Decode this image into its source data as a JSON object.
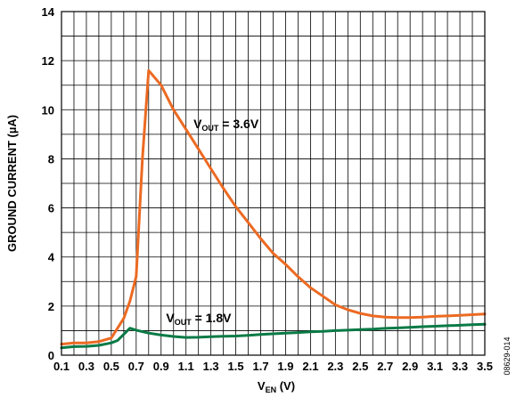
{
  "chart_data": {
    "type": "line",
    "xlabel": {
      "main": "V",
      "sub": "EN",
      "unit": " (V)"
    },
    "ylabel": "GROUND CURRENT (µA)",
    "xlim": [
      0.1,
      3.5
    ],
    "ylim": [
      0,
      14
    ],
    "x_ticks": [
      "0.1",
      "0.3",
      "0.5",
      "0.7",
      "0.9",
      "1.1",
      "1.3",
      "1.5",
      "1.7",
      "1.9",
      "2.1",
      "2.3",
      "2.5",
      "2.7",
      "2.9",
      "3.1",
      "3.3",
      "3.5"
    ],
    "x_tick_values": [
      0.1,
      0.3,
      0.5,
      0.7,
      0.9,
      1.1,
      1.3,
      1.5,
      1.7,
      1.9,
      2.1,
      2.3,
      2.5,
      2.7,
      2.9,
      3.1,
      3.3,
      3.5
    ],
    "y_ticks": [
      "0",
      "2",
      "4",
      "6",
      "8",
      "10",
      "12",
      "14"
    ],
    "y_tick_values": [
      0,
      2,
      4,
      6,
      8,
      10,
      12,
      14
    ],
    "grid": true,
    "figure_code": "08629-014",
    "series": [
      {
        "name": "3.6V",
        "label_main": "V",
        "label_sub": "OUT",
        "label_value": " = 3.6V",
        "label_at": {
          "x": 1.16,
          "y": 9.25
        },
        "color": "#ec6a22",
        "x": [
          0.1,
          0.2,
          0.3,
          0.4,
          0.5,
          0.6,
          0.65,
          0.7,
          0.75,
          0.8,
          0.9,
          1.0,
          1.1,
          1.2,
          1.3,
          1.4,
          1.5,
          1.6,
          1.7,
          1.8,
          1.9,
          2.0,
          2.1,
          2.2,
          2.3,
          2.4,
          2.5,
          2.6,
          2.7,
          2.8,
          2.9,
          3.0,
          3.1,
          3.2,
          3.3,
          3.4,
          3.5
        ],
        "y": [
          0.45,
          0.5,
          0.5,
          0.55,
          0.7,
          1.5,
          2.2,
          3.2,
          8.0,
          11.6,
          11.0,
          10.0,
          9.2,
          8.4,
          7.6,
          6.8,
          6.05,
          5.4,
          4.75,
          4.15,
          3.7,
          3.2,
          2.75,
          2.4,
          2.05,
          1.85,
          1.7,
          1.6,
          1.55,
          1.53,
          1.53,
          1.55,
          1.58,
          1.6,
          1.62,
          1.65,
          1.68
        ]
      },
      {
        "name": "1.8V",
        "label_main": "V",
        "label_sub": "OUT",
        "label_value": " = 1.8V",
        "label_at": {
          "x": 0.94,
          "y": 1.35
        },
        "color": "#0a7a46",
        "x": [
          0.1,
          0.2,
          0.3,
          0.4,
          0.5,
          0.55,
          0.6,
          0.65,
          0.7,
          0.8,
          0.9,
          1.0,
          1.1,
          1.2,
          1.3,
          1.4,
          1.5,
          1.6,
          1.7,
          1.8,
          1.9,
          2.0,
          2.1,
          2.2,
          2.3,
          2.4,
          2.5,
          2.6,
          2.7,
          2.8,
          2.9,
          3.0,
          3.1,
          3.2,
          3.3,
          3.4,
          3.5
        ],
        "y": [
          0.3,
          0.35,
          0.36,
          0.4,
          0.5,
          0.6,
          0.85,
          1.1,
          1.02,
          0.9,
          0.82,
          0.76,
          0.72,
          0.73,
          0.75,
          0.77,
          0.78,
          0.81,
          0.84,
          0.87,
          0.9,
          0.92,
          0.95,
          0.97,
          1.0,
          1.02,
          1.04,
          1.06,
          1.09,
          1.11,
          1.13,
          1.16,
          1.18,
          1.2,
          1.22,
          1.24,
          1.26
        ]
      }
    ]
  }
}
